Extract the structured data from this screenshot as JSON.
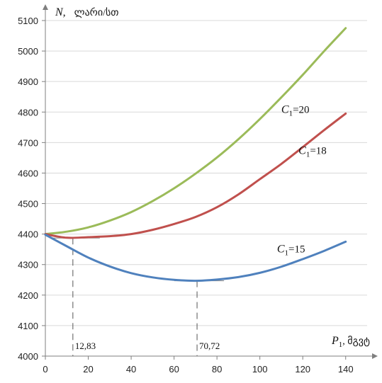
{
  "chart_data": {
    "type": "line",
    "ylabel_symbol": "N,",
    "ylabel_unit": "ლარი/სთ",
    "xlabel_symbol": "P",
    "xlabel_sub": "1",
    "xlabel_unit": ", მგვტ",
    "xlim": [
      0,
      150
    ],
    "ylim": [
      4000,
      5100
    ],
    "xticks": [
      0,
      20,
      40,
      60,
      80,
      100,
      120,
      140
    ],
    "yticks": [
      4000,
      4100,
      4200,
      4300,
      4400,
      4500,
      4600,
      4700,
      4800,
      4900,
      5000,
      5100
    ],
    "grid": "horizontal",
    "series": [
      {
        "name": "C1=20",
        "label_prefix": "C",
        "label_sub": "1",
        "label_value": "=20",
        "color": "#9bbb59",
        "x": [
          0,
          10,
          20,
          30,
          40,
          50,
          60,
          70,
          80,
          90,
          100,
          110,
          120,
          130,
          140
        ],
        "y": [
          4400,
          4408,
          4422,
          4444,
          4472,
          4508,
          4550,
          4598,
          4651,
          4711,
          4777,
          4848,
          4922,
          5000,
          5075
        ]
      },
      {
        "name": "C1=18",
        "label_prefix": "C",
        "label_sub": "1",
        "label_value": "=18",
        "color": "#c0504d",
        "x": [
          0,
          10,
          20,
          30,
          40,
          50,
          60,
          70,
          80,
          90,
          100,
          110,
          120,
          130,
          140
        ],
        "y": [
          4400,
          4388,
          4390,
          4393,
          4400,
          4414,
          4433,
          4456,
          4488,
          4530,
          4580,
          4630,
          4685,
          4741,
          4795
        ]
      },
      {
        "name": "C1=15",
        "label_prefix": "C",
        "label_sub": "1",
        "label_value": "=15",
        "color": "#4f81bd",
        "x": [
          0,
          10,
          20,
          30,
          40,
          50,
          60,
          70,
          80,
          90,
          100,
          110,
          120,
          130,
          140
        ],
        "y": [
          4398,
          4360,
          4323,
          4294,
          4272,
          4258,
          4250,
          4247,
          4251,
          4259,
          4273,
          4293,
          4318,
          4345,
          4375
        ]
      }
    ],
    "markers": [
      {
        "x": 12.83,
        "y": 4387,
        "label": "12,83"
      },
      {
        "x": 70.72,
        "y": 4247,
        "label": "70,72"
      }
    ]
  }
}
